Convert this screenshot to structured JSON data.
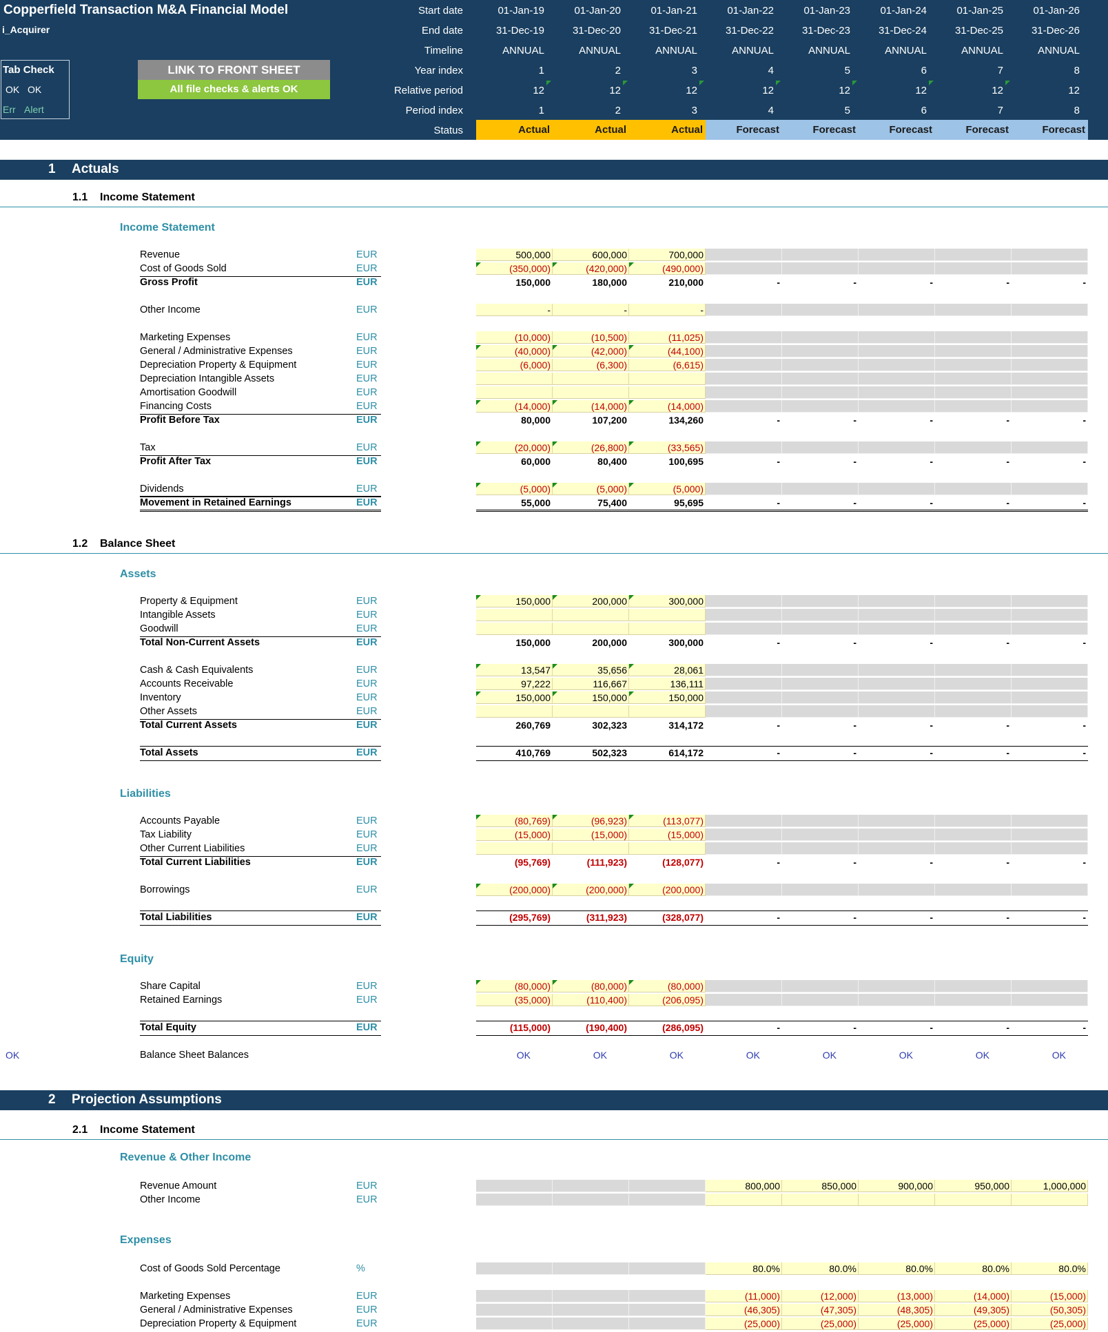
{
  "header": {
    "title": "Copperfield Transaction M&A Financial Model",
    "sheet": "i_Acquirer",
    "tab_check_label": "Tab Check",
    "ok1": "OK",
    "ok2": "OK",
    "err": "Err",
    "alert": "Alert",
    "link_button": "LINK TO FRONT SHEET",
    "checks_banner": "All file checks & alerts OK",
    "row_labels": [
      "Start date",
      "End date",
      "Timeline",
      "Year index",
      "Relative period",
      "Period index",
      "Status"
    ],
    "columns": [
      {
        "start": "01-Jan-19",
        "end": "31-Dec-19",
        "timeline": "ANNUAL",
        "year": "1",
        "rel": "12",
        "period": "1",
        "status": "Actual"
      },
      {
        "start": "01-Jan-20",
        "end": "31-Dec-20",
        "timeline": "ANNUAL",
        "year": "2",
        "rel": "12",
        "period": "2",
        "status": "Actual"
      },
      {
        "start": "01-Jan-21",
        "end": "31-Dec-21",
        "timeline": "ANNUAL",
        "year": "3",
        "rel": "12",
        "period": "3",
        "status": "Actual"
      },
      {
        "start": "01-Jan-22",
        "end": "31-Dec-22",
        "timeline": "ANNUAL",
        "year": "4",
        "rel": "12",
        "period": "4",
        "status": "Forecast"
      },
      {
        "start": "01-Jan-23",
        "end": "31-Dec-23",
        "timeline": "ANNUAL",
        "year": "5",
        "rel": "12",
        "period": "5",
        "status": "Forecast"
      },
      {
        "start": "01-Jan-24",
        "end": "31-Dec-24",
        "timeline": "ANNUAL",
        "year": "6",
        "rel": "12",
        "period": "6",
        "status": "Forecast"
      },
      {
        "start": "01-Jan-25",
        "end": "31-Dec-25",
        "timeline": "ANNUAL",
        "year": "7",
        "rel": "12",
        "period": "7",
        "status": "Forecast"
      },
      {
        "start": "01-Jan-26",
        "end": "31-Dec-26",
        "timeline": "ANNUAL",
        "year": "8",
        "rel": "12",
        "period": "8",
        "status": "Forecast"
      }
    ]
  },
  "colors": {
    "navy": "#1a3f60",
    "actual": "#ffc000",
    "forecast": "#9dc3e6",
    "input": "#ffffcc",
    "grey": "#d9d9d9",
    "teal": "#2e8fa6",
    "green": "#8dc63f"
  },
  "sections": [
    {
      "num": "1",
      "title": "Actuals",
      "top": 232
    },
    {
      "num": "2",
      "title": "Projection Assumptions",
      "top": 1583
    }
  ],
  "subsections": [
    {
      "num": "1.1",
      "title": "Income Statement",
      "top": 278
    },
    {
      "num": "1.2",
      "title": "Balance Sheet",
      "top": 781
    },
    {
      "num": "2.1",
      "title": "Income Statement",
      "top": 1632
    }
  ],
  "groups": [
    {
      "title": "Income Statement",
      "top": 322
    },
    {
      "title": "Assets",
      "top": 825
    },
    {
      "title": "Liabilities",
      "top": 1144
    },
    {
      "title": "Equity",
      "top": 1384
    },
    {
      "title": "Revenue & Other Income",
      "top": 1672
    },
    {
      "title": "Expenses",
      "top": 1792
    }
  ],
  "rows": [
    {
      "label": "Revenue",
      "unit": "EUR",
      "type": "act",
      "vals": [
        "500,000",
        "600,000",
        "700,000"
      ],
      "top": 362
    },
    {
      "label": "Cost of Goods Sold",
      "unit": "EUR",
      "type": "act",
      "vals": [
        "(350,000)",
        "(420,000)",
        "(490,000)"
      ],
      "top": 382,
      "rule": true
    },
    {
      "label": "Gross Profit",
      "unit": "EUR",
      "type": "total",
      "vals": [
        "150,000",
        "180,000",
        "210,000",
        "-",
        "-",
        "-",
        "-",
        "-"
      ],
      "top": 402
    },
    {
      "label": "Other Income",
      "unit": "EUR",
      "type": "act",
      "vals": [
        "-",
        "-",
        "-"
      ],
      "top": 442
    },
    {
      "label": "Marketing Expenses",
      "unit": "EUR",
      "type": "act",
      "vals": [
        "(10,000)",
        "(10,500)",
        "(11,025)"
      ],
      "top": 482
    },
    {
      "label": "General / Administrative Expenses",
      "unit": "EUR",
      "type": "act",
      "vals": [
        "(40,000)",
        "(42,000)",
        "(44,100)"
      ],
      "top": 502
    },
    {
      "label": "Depreciation Property & Equipment",
      "unit": "EUR",
      "type": "act",
      "vals": [
        "(6,000)",
        "(6,300)",
        "(6,615)"
      ],
      "top": 522
    },
    {
      "label": "Depreciation Intangible Assets",
      "unit": "EUR",
      "type": "act",
      "vals": [
        "",
        "",
        ""
      ],
      "top": 542
    },
    {
      "label": "Amortisation Goodwill",
      "unit": "EUR",
      "type": "act",
      "vals": [
        "",
        "",
        ""
      ],
      "top": 562
    },
    {
      "label": "Financing Costs",
      "unit": "EUR",
      "type": "act",
      "vals": [
        "(14,000)",
        "(14,000)",
        "(14,000)"
      ],
      "top": 582,
      "rule": true
    },
    {
      "label": "Profit Before Tax",
      "unit": "EUR",
      "type": "total",
      "vals": [
        "80,000",
        "107,200",
        "134,260",
        "-",
        "-",
        "-",
        "-",
        "-"
      ],
      "top": 602
    },
    {
      "label": "Tax",
      "unit": "EUR",
      "type": "act",
      "vals": [
        "(20,000)",
        "(26,800)",
        "(33,565)"
      ],
      "top": 642,
      "rule": true
    },
    {
      "label": "Profit After Tax",
      "unit": "EUR",
      "type": "total",
      "vals": [
        "60,000",
        "80,400",
        "100,695",
        "-",
        "-",
        "-",
        "-",
        "-"
      ],
      "top": 662
    },
    {
      "label": "Dividends",
      "unit": "EUR",
      "type": "act",
      "vals": [
        "(5,000)",
        "(5,000)",
        "(5,000)"
      ],
      "top": 702,
      "rule": true
    },
    {
      "label": "Movement in Retained Earnings",
      "unit": "EUR",
      "type": "total",
      "vals": [
        "55,000",
        "75,400",
        "95,695",
        "-",
        "-",
        "-",
        "-",
        "-"
      ],
      "top": 722,
      "dbl": true
    },
    {
      "label": "Property & Equipment",
      "unit": "EUR",
      "type": "act",
      "vals": [
        "150,000",
        "200,000",
        "300,000"
      ],
      "top": 865
    },
    {
      "label": "Intangible Assets",
      "unit": "EUR",
      "type": "act",
      "vals": [
        "",
        "",
        ""
      ],
      "top": 885
    },
    {
      "label": "Goodwill",
      "unit": "EUR",
      "type": "act",
      "vals": [
        "",
        "",
        ""
      ],
      "top": 905,
      "rule": true
    },
    {
      "label": "Total Non-Current Assets",
      "unit": "EUR",
      "type": "total",
      "vals": [
        "150,000",
        "200,000",
        "300,000",
        "-",
        "-",
        "-",
        "-",
        "-"
      ],
      "top": 925
    },
    {
      "label": "Cash & Cash Equivalents",
      "unit": "EUR",
      "type": "act",
      "vals": [
        "13,547",
        "35,656",
        "28,061"
      ],
      "top": 965
    },
    {
      "label": "Accounts Receivable",
      "unit": "EUR",
      "type": "act",
      "vals": [
        "97,222",
        "116,667",
        "136,111"
      ],
      "top": 985
    },
    {
      "label": "Inventory",
      "unit": "EUR",
      "type": "act",
      "vals": [
        "150,000",
        "150,000",
        "150,000"
      ],
      "top": 1005
    },
    {
      "label": "Other Assets",
      "unit": "EUR",
      "type": "act",
      "vals": [
        "",
        "",
        ""
      ],
      "top": 1025,
      "rule": true
    },
    {
      "label": "Total Current Assets",
      "unit": "EUR",
      "type": "total",
      "vals": [
        "260,769",
        "302,323",
        "314,172",
        "-",
        "-",
        "-",
        "-",
        "-"
      ],
      "top": 1045
    },
    {
      "label": "Total Assets",
      "unit": "EUR",
      "type": "total",
      "vals": [
        "410,769",
        "502,323",
        "614,172",
        "-",
        "-",
        "-",
        "-",
        "-"
      ],
      "top": 1085,
      "boxed": true
    },
    {
      "label": "Accounts Payable",
      "unit": "EUR",
      "type": "act",
      "vals": [
        "(80,769)",
        "(96,923)",
        "(113,077)"
      ],
      "top": 1184
    },
    {
      "label": "Tax Liability",
      "unit": "EUR",
      "type": "act",
      "vals": [
        "(15,000)",
        "(15,000)",
        "(15,000)"
      ],
      "top": 1204
    },
    {
      "label": "Other Current Liabilities",
      "unit": "EUR",
      "type": "act",
      "vals": [
        "",
        "",
        ""
      ],
      "top": 1224,
      "rule": true
    },
    {
      "label": "Total Current Liabilities",
      "unit": "EUR",
      "type": "total",
      "vals": [
        "(95,769)",
        "(111,923)",
        "(128,077)",
        "-",
        "-",
        "-",
        "-",
        "-"
      ],
      "top": 1244
    },
    {
      "label": "Borrowings",
      "unit": "EUR",
      "type": "act",
      "vals": [
        "(200,000)",
        "(200,000)",
        "(200,000)"
      ],
      "top": 1284
    },
    {
      "label": "Total Liabilities",
      "unit": "EUR",
      "type": "total",
      "vals": [
        "(295,769)",
        "(311,923)",
        "(328,077)",
        "-",
        "-",
        "-",
        "-",
        "-"
      ],
      "top": 1324,
      "boxed": true
    },
    {
      "label": "Share Capital",
      "unit": "EUR",
      "type": "act",
      "vals": [
        "(80,000)",
        "(80,000)",
        "(80,000)"
      ],
      "top": 1424
    },
    {
      "label": "Retained Earnings",
      "unit": "EUR",
      "type": "act",
      "vals": [
        "(35,000)",
        "(110,400)",
        "(206,095)"
      ],
      "top": 1444
    },
    {
      "label": "Total Equity",
      "unit": "EUR",
      "type": "total",
      "vals": [
        "(115,000)",
        "(190,400)",
        "(286,095)",
        "-",
        "-",
        "-",
        "-",
        "-"
      ],
      "top": 1484,
      "boxed": true
    },
    {
      "label": "Revenue Amount",
      "unit": "EUR",
      "type": "fc",
      "vals": [
        "800,000",
        "850,000",
        "900,000",
        "950,000",
        "1,000,000"
      ],
      "top": 1714
    },
    {
      "label": "Other Income",
      "unit": "EUR",
      "type": "fc",
      "vals": [
        "",
        "",
        "",
        "",
        ""
      ],
      "top": 1734
    },
    {
      "label": "Cost of Goods Sold Percentage",
      "unit": "%",
      "type": "fc",
      "vals": [
        "80.0%",
        "80.0%",
        "80.0%",
        "80.0%",
        "80.0%"
      ],
      "top": 1834
    },
    {
      "label": "Marketing Expenses",
      "unit": "EUR",
      "type": "fc",
      "vals": [
        "(11,000)",
        "(12,000)",
        "(13,000)",
        "(14,000)",
        "(15,000)"
      ],
      "top": 1874
    },
    {
      "label": "General / Administrative Expenses",
      "unit": "EUR",
      "type": "fc",
      "vals": [
        "(46,305)",
        "(47,305)",
        "(48,305)",
        "(49,305)",
        "(50,305)"
      ],
      "top": 1894
    },
    {
      "label": "Depreciation Property & Equipment",
      "unit": "EUR",
      "type": "fc",
      "vals": [
        "(25,000)",
        "(25,000)",
        "(25,000)",
        "(25,000)",
        "(25,000)"
      ],
      "top": 1914
    }
  ],
  "balance_check": {
    "flag": "OK",
    "label": "Balance Sheet Balances",
    "vals": [
      "OK",
      "OK",
      "OK",
      "OK",
      "OK",
      "OK",
      "OK",
      "OK"
    ],
    "top": 1524
  }
}
